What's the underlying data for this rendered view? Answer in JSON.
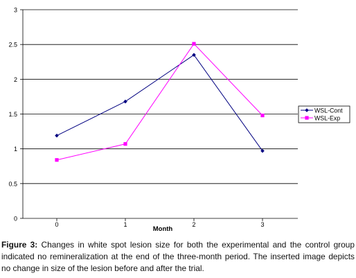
{
  "chart_data": {
    "type": "line",
    "x": [
      0,
      1,
      2,
      3
    ],
    "xlabel": "Month",
    "ylabel": "",
    "title": "",
    "ylim": [
      0,
      3
    ],
    "yticks": [
      0,
      0.5,
      1,
      1.5,
      2,
      2.5,
      3
    ],
    "ytick_labels": [
      "0",
      "0.5",
      "1",
      "1.5",
      "2",
      "2.5",
      "3"
    ],
    "xtick_labels": [
      "0",
      "1",
      "2",
      "3"
    ],
    "grid": "horizontal",
    "legend_position": "right",
    "series": [
      {
        "name": "WSL-Cont",
        "values": [
          1.19,
          1.68,
          2.35,
          0.97
        ],
        "color": "#000080",
        "marker": "diamond"
      },
      {
        "name": "WSL-Exp",
        "values": [
          0.84,
          1.07,
          2.51,
          1.48
        ],
        "color": "#ff00ff",
        "marker": "square"
      }
    ]
  },
  "caption": {
    "label": "Figure 3:",
    "text": "Changes in white spot lesion size for both the experimental and the control group indicated no remineralization at the end of the three-month period. The inserted image depicts no change in size of the lesion before and after the trial."
  }
}
